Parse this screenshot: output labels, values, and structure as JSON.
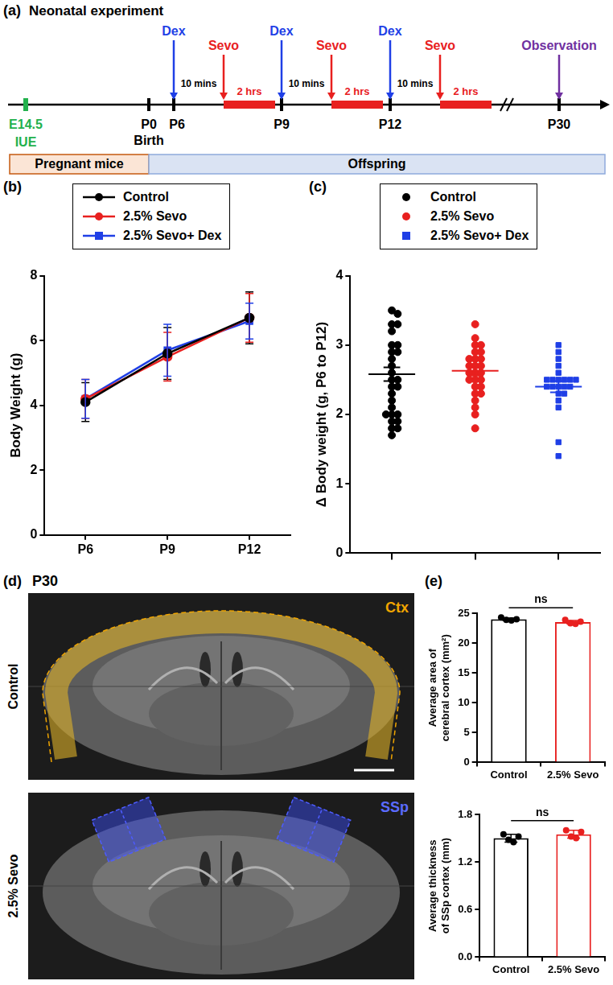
{
  "panel_a": {
    "letter": "(a)",
    "title": "Neonatal experiment",
    "timepoints": [
      "E14.5",
      "P0",
      "P6",
      "P9",
      "P12",
      "P30"
    ],
    "surgery": "IUE",
    "birth": "Birth",
    "drug": "Dex",
    "anesthetic": "Sevo",
    "interval": "10 mins",
    "duration": "2 hrs",
    "observation": "Observation",
    "phases": [
      "Pregnant mice",
      "Offspring"
    ]
  },
  "panel_d": {
    "letter": "(d)",
    "time": "P30",
    "rows": [
      "Control",
      "2.5% Sevo"
    ],
    "regions": [
      "Ctx",
      "SSp"
    ]
  },
  "chart_data": [
    {
      "letter": "(b)",
      "type": "line",
      "categories": [
        "P6",
        "P9",
        "P12"
      ],
      "y_label": "Body Weight (g)",
      "ylim": [
        0,
        8
      ],
      "yticks": [
        0,
        2,
        4,
        6,
        8
      ],
      "grid": false,
      "legend": "top",
      "series": [
        {
          "name": "Control",
          "color": "#000000",
          "marker": "circle",
          "values": [
            4.1,
            5.6,
            6.7
          ],
          "errors": [
            0.6,
            0.8,
            0.8
          ]
        },
        {
          "name": "2.5% Sevo",
          "color": "#e8201f",
          "marker": "circle",
          "values": [
            4.2,
            5.5,
            6.7
          ],
          "errors": [
            0.6,
            0.75,
            0.75
          ]
        },
        {
          "name": "2.5% Sevo+ Dex",
          "color": "#1f3fe6",
          "marker": "square",
          "values": [
            4.2,
            5.7,
            6.6
          ],
          "errors": [
            0.6,
            0.8,
            0.55
          ]
        }
      ]
    },
    {
      "letter": "(c)",
      "type": "scatter",
      "y_label": "Δ Body weight (g, P6 to P12)",
      "ylim": [
        0,
        4
      ],
      "yticks": [
        0,
        1,
        2,
        3,
        4
      ],
      "grid": false,
      "legend": "top",
      "tick_labels": "y",
      "series": [
        {
          "name": "Control",
          "color": "#000000",
          "marker": "circle",
          "mean": 2.58,
          "sem": 0.1,
          "values": [
            3.5,
            3.45,
            3.3,
            3.3,
            3.2,
            3.0,
            3.0,
            2.9,
            2.9,
            2.8,
            2.7,
            2.6,
            2.5,
            2.5,
            2.4,
            2.4,
            2.3,
            2.2,
            2.1,
            2.0,
            2.0,
            1.9,
            1.8,
            1.8,
            1.7,
            1.9,
            2.0
          ]
        },
        {
          "name": "2.5% Sevo",
          "color": "#e8201f",
          "marker": "circle",
          "mean": 2.63,
          "sem": 0.07,
          "values": [
            3.3,
            3.1,
            3.0,
            3.0,
            2.9,
            2.9,
            2.8,
            2.8,
            2.8,
            2.7,
            2.7,
            2.7,
            2.6,
            2.6,
            2.6,
            2.5,
            2.5,
            2.5,
            2.4,
            2.4,
            2.3,
            2.2,
            2.1,
            2.0,
            1.8,
            2.3
          ]
        },
        {
          "name": "2.5% Sevo+ Dex",
          "color": "#1f3fe6",
          "marker": "square",
          "mean": 2.4,
          "sem": 0.08,
          "values": [
            3.0,
            2.9,
            2.8,
            2.7,
            2.6,
            2.5,
            2.5,
            2.5,
            2.5,
            2.5,
            2.5,
            2.4,
            2.4,
            2.4,
            2.4,
            2.4,
            2.3,
            2.3,
            2.2,
            2.1,
            1.6,
            1.4
          ]
        }
      ]
    },
    {
      "letter": "(e)",
      "type": "bar",
      "categories": [
        "Control",
        "2.5% Sevo"
      ],
      "y_label": "Average area of cerebral cortex (mm²)",
      "ylim": [
        0,
        25
      ],
      "yticks": [
        0,
        5,
        10,
        15,
        20,
        25
      ],
      "grid": false,
      "values": [
        24.0,
        23.5
      ],
      "errors": [
        0.2,
        0.3
      ],
      "points": [
        [
          24.3,
          23.9,
          23.8,
          24.0
        ],
        [
          23.9,
          23.3,
          23.2,
          23.6
        ]
      ],
      "colors": [
        "#000000",
        "#e8201f"
      ],
      "annotation": "ns"
    },
    {
      "type": "bar",
      "categories": [
        "Control",
        "2.5% Sevo"
      ],
      "y_label": "Average thickness of SSp cortex (mm)",
      "ylim": [
        0,
        1.8
      ],
      "yticks": [
        {
          "value": 0,
          "label": "0.0"
        },
        0.6,
        1.2,
        1.8
      ],
      "grid": false,
      "values": [
        1.5,
        1.55
      ],
      "errors": [
        0.05,
        0.05
      ],
      "points": [
        [
          1.55,
          1.48,
          1.45,
          1.52
        ],
        [
          1.6,
          1.52,
          1.5,
          1.58
        ]
      ],
      "colors": [
        "#000000",
        "#e8201f"
      ],
      "annotation": "ns"
    }
  ]
}
